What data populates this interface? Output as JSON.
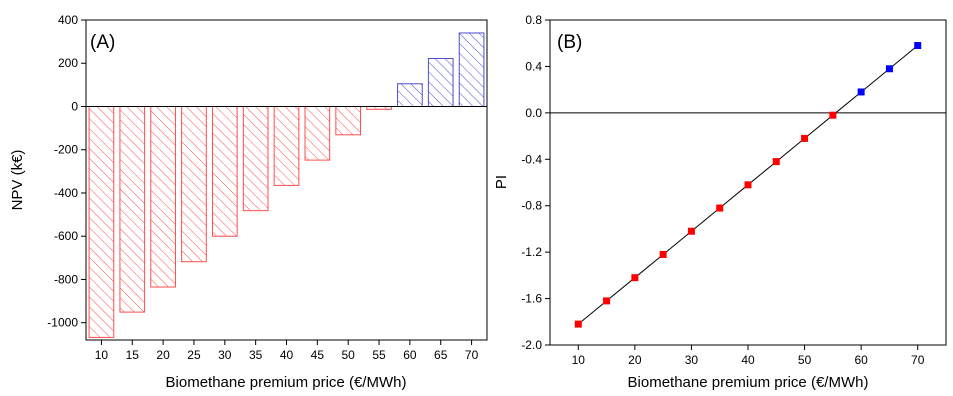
{
  "chart_data": [
    {
      "type": "bar",
      "panel_label": "(A)",
      "xlabel": "Biomethane premium price (€/MWh)",
      "ylabel": "NPV (k€)",
      "categories": [
        "10",
        "15",
        "20",
        "25",
        "30",
        "35",
        "40",
        "45",
        "50",
        "55",
        "60",
        "65",
        "70"
      ],
      "values": [
        -1068,
        -951,
        -835,
        -718,
        -600,
        -482,
        -365,
        -248,
        -131,
        -13,
        105,
        222,
        340
      ],
      "ylim": [
        -1080,
        400
      ],
      "yticks": [
        -1000,
        -800,
        -600,
        -400,
        -200,
        0,
        200,
        400
      ],
      "pattern": "diagonal hatch",
      "colors": {
        "negative": "#ff4d4d",
        "positive": "#4d4dcc"
      },
      "grid": false
    },
    {
      "type": "line",
      "panel_label": "(B)",
      "xlabel": "Biomethane premium price (€/MWh)",
      "ylabel": "PI",
      "x": [
        10,
        15,
        20,
        25,
        30,
        35,
        40,
        45,
        50,
        55,
        60,
        65,
        70
      ],
      "y": [
        -1.82,
        -1.62,
        -1.42,
        -1.22,
        -1.02,
        -0.82,
        -0.62,
        -0.42,
        -0.22,
        -0.02,
        0.18,
        0.38,
        0.58
      ],
      "xlim": [
        5,
        75
      ],
      "ylim": [
        -2.0,
        0.8
      ],
      "xticks": [
        10,
        20,
        30,
        40,
        50,
        60,
        70
      ],
      "yticks": [
        -2.0,
        -1.6,
        -1.2,
        -0.8,
        -0.4,
        0.0,
        0.4,
        0.8
      ],
      "markers": "square",
      "reference_line": 0,
      "colors": {
        "negative": "#ff0000",
        "positive": "#0000ff",
        "line": "#000000"
      },
      "grid": false
    }
  ]
}
